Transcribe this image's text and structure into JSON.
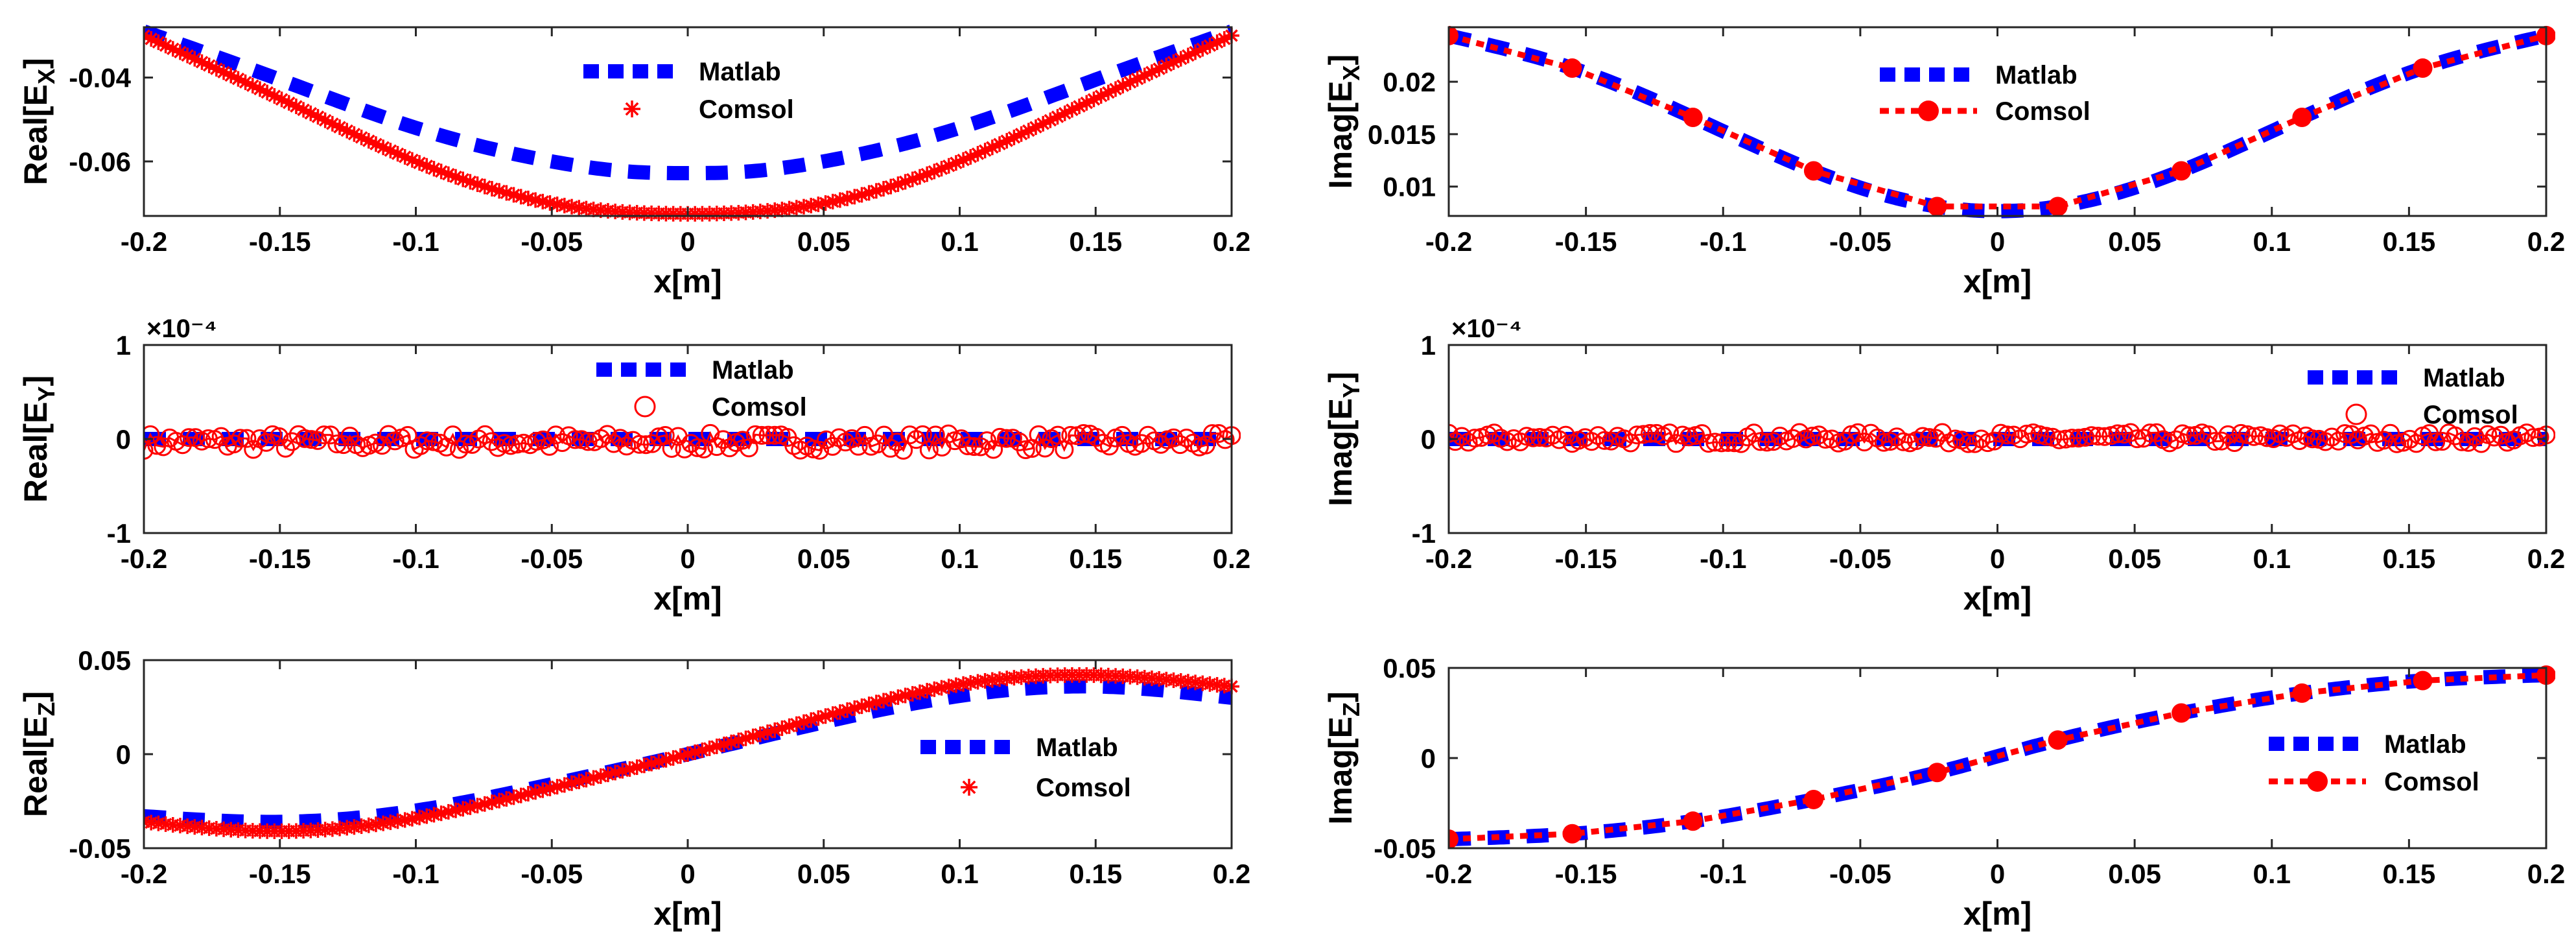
{
  "colors": {
    "matlab": "#0000ff",
    "comsol": "#ff0000",
    "axis": "#262626"
  },
  "chart_data": [
    {
      "id": "real-ex",
      "type": "line",
      "title": "",
      "xlabel": "x[m]",
      "ylabel": "Real[E_X]",
      "xlim": [
        -0.2,
        0.2
      ],
      "ylim": [
        -0.073,
        -0.028
      ],
      "xticks": [
        -0.2,
        -0.15,
        -0.1,
        -0.05,
        0,
        0.05,
        0.1,
        0.15,
        0.2
      ],
      "xtick_labels": [
        "-0.2",
        "-0.15",
        "-0.1",
        "-0.05",
        "0",
        "0.05",
        "0.1",
        "0.15",
        "0.2"
      ],
      "yticks": [
        -0.04,
        -0.06
      ],
      "ytick_labels": [
        "-0.04",
        "-0.06"
      ],
      "exponent": "",
      "legend": {
        "position": "top-center",
        "entries": [
          "Matlab",
          "Comsol"
        ]
      },
      "series": [
        {
          "name": "Matlab",
          "style": "thick-dash",
          "x": [
            -0.2,
            -0.15,
            -0.1,
            -0.05,
            -0.02,
            0,
            0.02,
            0.05,
            0.1,
            0.15,
            0.2
          ],
          "y": [
            -0.029,
            -0.0405,
            -0.052,
            -0.06,
            -0.0625,
            -0.0628,
            -0.0625,
            -0.06,
            -0.052,
            -0.0405,
            -0.029
          ]
        },
        {
          "name": "Comsol",
          "style": "asterisk",
          "x": [
            -0.2,
            -0.15,
            -0.1,
            -0.05,
            0,
            0.05,
            0.1,
            0.15,
            0.2
          ],
          "y": [
            -0.03,
            -0.045,
            -0.06,
            -0.07,
            -0.0725,
            -0.07,
            -0.06,
            -0.045,
            -0.03
          ]
        }
      ]
    },
    {
      "id": "imag-ex",
      "type": "line",
      "title": "",
      "xlabel": "x[m]",
      "ylabel": "Imag[E_X]",
      "xlim": [
        -0.2,
        0.2
      ],
      "ylim": [
        0.0072,
        0.0252
      ],
      "xticks": [
        -0.2,
        -0.15,
        -0.1,
        -0.05,
        0,
        0.05,
        0.1,
        0.15,
        0.2
      ],
      "xtick_labels": [
        "-0.2",
        "-0.15",
        "-0.1",
        "-0.05",
        "0",
        "0.05",
        "0.1",
        "0.15",
        "0.2"
      ],
      "yticks": [
        0.02,
        0.015,
        0.01
      ],
      "ytick_labels": [
        "0.02",
        "0.015",
        "0.01"
      ],
      "exponent": "",
      "legend": {
        "position": "top-center",
        "entries": [
          "Matlab",
          "Comsol"
        ]
      },
      "series": [
        {
          "name": "Matlab",
          "style": "thick-dash",
          "x": [
            -0.2,
            -0.155,
            -0.111,
            -0.067,
            -0.022,
            0.022,
            0.067,
            0.111,
            0.155,
            0.2
          ],
          "y": [
            0.0244,
            0.0213,
            0.0166,
            0.0115,
            0.0081,
            0.0081,
            0.0115,
            0.0166,
            0.0213,
            0.0244
          ]
        },
        {
          "name": "Comsol",
          "style": "dot-circle",
          "x": [
            -0.2,
            -0.155,
            -0.111,
            -0.067,
            -0.022,
            0.022,
            0.067,
            0.111,
            0.155,
            0.2
          ],
          "y": [
            0.0244,
            0.0213,
            0.0166,
            0.0115,
            0.0081,
            0.0081,
            0.0115,
            0.0166,
            0.0213,
            0.0244
          ]
        }
      ]
    },
    {
      "id": "real-ey",
      "type": "line",
      "title": "",
      "xlabel": "x[m]",
      "ylabel": "Real[E_Y]",
      "xlim": [
        -0.2,
        0.2
      ],
      "ylim": [
        -1,
        1
      ],
      "xticks": [
        -0.2,
        -0.15,
        -0.1,
        -0.05,
        0,
        0.05,
        0.1,
        0.15,
        0.2
      ],
      "xtick_labels": [
        "-0.2",
        "-0.15",
        "-0.1",
        "-0.05",
        "0",
        "0.05",
        "0.1",
        "0.15",
        "0.2"
      ],
      "yticks": [
        1,
        0,
        -1
      ],
      "ytick_labels": [
        "1",
        "0",
        "-1"
      ],
      "exponent": "×10⁻⁴",
      "legend": {
        "position": "top-center",
        "entries": [
          "Matlab",
          "Comsol"
        ]
      },
      "series": [
        {
          "name": "Matlab",
          "style": "thick-dash",
          "x": [
            -0.2,
            0.2
          ],
          "y": [
            0,
            0
          ]
        },
        {
          "name": "Comsol",
          "style": "open-circle",
          "noise_amplitude": 0.09,
          "count": 170,
          "x_range": [
            -0.2,
            0.2
          ],
          "y_mean": -0.03
        }
      ]
    },
    {
      "id": "imag-ey",
      "type": "line",
      "title": "",
      "xlabel": "x[m]",
      "ylabel": "Imag[E_Y]",
      "xlim": [
        -0.2,
        0.2
      ],
      "ylim": [
        -1,
        1
      ],
      "xticks": [
        -0.2,
        -0.15,
        -0.1,
        -0.05,
        0,
        0.05,
        0.1,
        0.15,
        0.2
      ],
      "xtick_labels": [
        "-0.2",
        "-0.15",
        "-0.1",
        "-0.05",
        "0",
        "0.05",
        "0.1",
        "0.15",
        "0.2"
      ],
      "yticks": [
        1,
        0,
        -1
      ],
      "ytick_labels": [
        "1",
        "0",
        "-1"
      ],
      "exponent": "×10⁻⁴",
      "legend": {
        "position": "top-right",
        "entries": [
          "Matlab",
          "Comsol"
        ]
      },
      "series": [
        {
          "name": "Matlab",
          "style": "thick-dash",
          "x": [
            -0.2,
            0.2
          ],
          "y": [
            0,
            0
          ]
        },
        {
          "name": "Comsol",
          "style": "open-circle",
          "noise_amplitude": 0.06,
          "count": 170,
          "x_range": [
            -0.2,
            0.2
          ],
          "y_mean": 0.01
        }
      ]
    },
    {
      "id": "real-ez",
      "type": "line",
      "title": "",
      "xlabel": "x[m]",
      "ylabel": "Real[E_Z]",
      "xlim": [
        -0.2,
        0.2
      ],
      "ylim": [
        -0.05,
        0.05
      ],
      "xticks": [
        -0.2,
        -0.15,
        -0.1,
        -0.05,
        0,
        0.05,
        0.1,
        0.15,
        0.2
      ],
      "xtick_labels": [
        "-0.2",
        "-0.15",
        "-0.1",
        "-0.05",
        "0",
        "0.05",
        "0.1",
        "0.15",
        "0.2"
      ],
      "yticks": [
        0.05,
        0,
        -0.05
      ],
      "ytick_labels": [
        "0.05",
        "0",
        "-0.05"
      ],
      "exponent": "",
      "legend": {
        "position": "middle-right",
        "entries": [
          "Matlab",
          "Comsol"
        ]
      },
      "series": [
        {
          "name": "Matlab",
          "style": "thick-dash",
          "x": [
            -0.2,
            -0.15,
            -0.1,
            -0.05,
            0,
            0.05,
            0.1,
            0.15,
            0.2
          ],
          "y": [
            -0.033,
            -0.036,
            -0.03,
            -0.016,
            0,
            0.017,
            0.031,
            0.036,
            0.03
          ]
        },
        {
          "name": "Comsol",
          "style": "asterisk",
          "x": [
            -0.2,
            -0.15,
            -0.1,
            -0.05,
            0,
            0.05,
            0.1,
            0.15,
            0.2
          ],
          "y": [
            -0.036,
            -0.041,
            -0.034,
            -0.018,
            0,
            0.02,
            0.037,
            0.042,
            0.036
          ]
        }
      ]
    },
    {
      "id": "imag-ez",
      "type": "line",
      "title": "",
      "xlabel": "x[m]",
      "ylabel": "Imag[E_Z]",
      "xlim": [
        -0.2,
        0.2
      ],
      "ylim": [
        -0.05,
        0.05
      ],
      "xticks": [
        -0.2,
        -0.15,
        -0.1,
        -0.05,
        0,
        0.05,
        0.1,
        0.15,
        0.2
      ],
      "xtick_labels": [
        "-0.2",
        "-0.15",
        "-0.1",
        "-0.05",
        "0",
        "0.05",
        "0.1",
        "0.15",
        "0.2"
      ],
      "yticks": [
        0.05,
        0,
        -0.05
      ],
      "ytick_labels": [
        "0.05",
        "0",
        "-0.05"
      ],
      "exponent": "",
      "legend": {
        "position": "middle-right",
        "entries": [
          "Matlab",
          "Comsol"
        ]
      },
      "series": [
        {
          "name": "Matlab",
          "style": "thick-dash",
          "x": [
            -0.2,
            -0.155,
            -0.111,
            -0.067,
            -0.022,
            0.022,
            0.067,
            0.111,
            0.155,
            0.2
          ],
          "y": [
            -0.045,
            -0.042,
            -0.035,
            -0.023,
            -0.008,
            0.01,
            0.025,
            0.036,
            0.043,
            0.046
          ]
        },
        {
          "name": "Comsol",
          "style": "dot-circle",
          "x": [
            -0.2,
            -0.155,
            -0.111,
            -0.067,
            -0.022,
            0.022,
            0.067,
            0.111,
            0.155,
            0.2
          ],
          "y": [
            -0.045,
            -0.042,
            -0.035,
            -0.023,
            -0.008,
            0.01,
            0.025,
            0.036,
            0.043,
            0.046
          ]
        }
      ]
    }
  ]
}
